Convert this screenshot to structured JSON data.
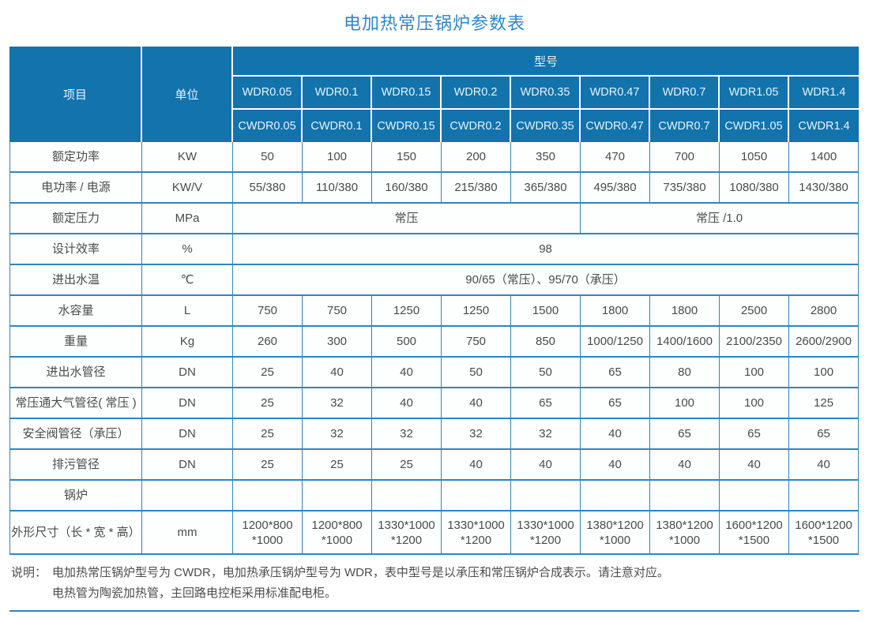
{
  "title": "电加热常压锅炉参数表",
  "colors": {
    "header_bg": "#1273ad",
    "header_text": "#e8f3fb",
    "grid_blue": "#2e85c2",
    "title_blue": "#2e86c8",
    "body_text": "#4a4a4a"
  },
  "header": {
    "item_label": "项目",
    "unit_label": "单位",
    "model_label": "型号",
    "models_wdr": [
      "WDR0.05",
      "WDR0.1",
      "WDR0.15",
      "WDR0.2",
      "WDR0.35",
      "WDR0.47",
      "WDR0.7",
      "WDR1.05",
      "WDR1.4"
    ],
    "models_cwdr": [
      "CWDR0.05",
      "CWDR0.1",
      "CWDR0.15",
      "CWDR0.2",
      "CWDR0.35",
      "CWDR0.47",
      "CWDR0.7",
      "CWDR1.05",
      "CWDR1.4"
    ]
  },
  "rows": [
    {
      "label": "额定功率",
      "unit": "KW",
      "values": [
        "50",
        "100",
        "150",
        "200",
        "350",
        "470",
        "700",
        "1050",
        "1400"
      ]
    },
    {
      "label": "电功率 / 电源",
      "unit": "KW/V",
      "values": [
        "55/380",
        "110/380",
        "160/380",
        "215/380",
        "365/380",
        "495/380",
        "735/380",
        "1080/380",
        "1430/380"
      ]
    },
    {
      "label": "额定压力",
      "unit": "MPa",
      "span_values": [
        {
          "text": "常压",
          "span": 5
        },
        {
          "text": "常压 /1.0",
          "span": 4
        }
      ]
    },
    {
      "label": "设计效率",
      "unit": "%",
      "span_values": [
        {
          "text": "98",
          "span": 9
        }
      ]
    },
    {
      "label": "进出水温",
      "unit": "℃",
      "span_values": [
        {
          "text": "90/65（常压）、95/70（承压）",
          "span": 9
        }
      ]
    },
    {
      "label": "水容量",
      "unit": "L",
      "values": [
        "750",
        "750",
        "1250",
        "1250",
        "1500",
        "1800",
        "1800",
        "2500",
        "2800"
      ]
    },
    {
      "label": "重量",
      "unit": "Kg",
      "values": [
        "260",
        "300",
        "500",
        "750",
        "850",
        "1000/1250",
        "1400/1600",
        "2100/2350",
        "2600/2900"
      ]
    },
    {
      "label": "进出水管径",
      "unit": "DN",
      "values": [
        "25",
        "40",
        "40",
        "50",
        "50",
        "65",
        "80",
        "100",
        "100"
      ]
    },
    {
      "label": "常压通大气管径( 常压 )",
      "unit": "DN",
      "values": [
        "25",
        "32",
        "40",
        "40",
        "65",
        "65",
        "100",
        "100",
        "125"
      ]
    },
    {
      "label": "安全阀管径（承压）",
      "unit": "DN",
      "values": [
        "25",
        "32",
        "32",
        "32",
        "32",
        "40",
        "65",
        "65",
        "65"
      ]
    },
    {
      "label": "排污管径",
      "unit": "DN",
      "values": [
        "25",
        "25",
        "25",
        "40",
        "40",
        "40",
        "40",
        "40",
        "40"
      ]
    },
    {
      "label": "锅炉",
      "unit": "",
      "values": [
        "",
        "",
        "",
        "",
        "",
        "",
        "",
        "",
        ""
      ]
    },
    {
      "label": "外形尺寸（长 * 宽 * 高）",
      "unit": "mm",
      "values": [
        "1200*800\n*1000",
        "1200*800\n*1000",
        "1330*1000\n*1200",
        "1330*1000\n*1200",
        "1330*1000\n*1200",
        "1380*1200\n*1000",
        "1380*1200\n*1000",
        "1600*1200\n*1500",
        "1600*1200\n*1500"
      ]
    }
  ],
  "notes": {
    "prefix": "说明：",
    "line1": "电加热常压锅炉型号为 CWDR，电加热承压锅炉型号为 WDR，表中型号是以承压和常压锅炉合成表示。请注意对应。",
    "line2": "电热管为陶瓷加热管，主回路电控柜采用标准配电柜。"
  }
}
